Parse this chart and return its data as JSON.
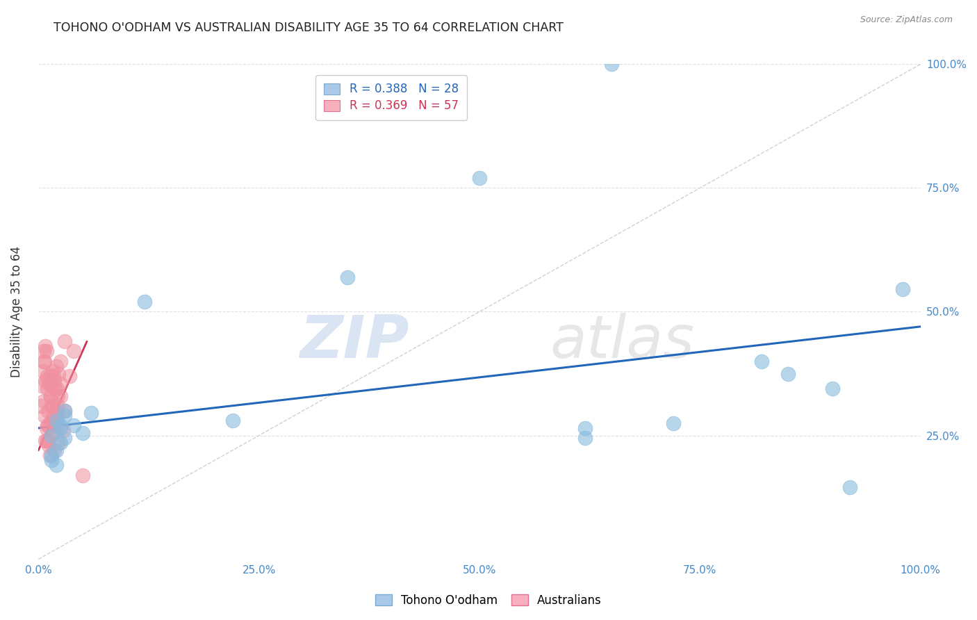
{
  "title": "TOHONO O'ODHAM VS AUSTRALIAN DISABILITY AGE 35 TO 64 CORRELATION CHART",
  "source": "Source: ZipAtlas.com",
  "ylabel": "Disability Age 35 to 64",
  "xlim": [
    0,
    1.0
  ],
  "ylim": [
    0,
    1.0
  ],
  "xtick_labels": [
    "0.0%",
    "",
    "25.0%",
    "",
    "50.0%",
    "",
    "75.0%",
    "",
    "100.0%"
  ],
  "xtick_values": [
    0.0,
    0.125,
    0.25,
    0.375,
    0.5,
    0.625,
    0.75,
    0.875,
    1.0
  ],
  "ytick_values": [
    0.0,
    0.25,
    0.5,
    0.75,
    1.0
  ],
  "ytick_labels_right": [
    "",
    "25.0%",
    "50.0%",
    "75.0%",
    "100.0%"
  ],
  "tohono_scatter": [
    [
      0.02,
      0.28
    ],
    [
      0.03,
      0.3
    ],
    [
      0.025,
      0.265
    ],
    [
      0.015,
      0.25
    ],
    [
      0.02,
      0.22
    ],
    [
      0.025,
      0.27
    ],
    [
      0.03,
      0.245
    ],
    [
      0.015,
      0.2
    ],
    [
      0.02,
      0.19
    ],
    [
      0.03,
      0.29
    ],
    [
      0.04,
      0.27
    ],
    [
      0.05,
      0.255
    ],
    [
      0.06,
      0.295
    ],
    [
      0.025,
      0.235
    ],
    [
      0.015,
      0.21
    ],
    [
      0.12,
      0.52
    ],
    [
      0.22,
      0.28
    ],
    [
      0.35,
      0.57
    ],
    [
      0.5,
      0.77
    ],
    [
      0.62,
      0.265
    ],
    [
      0.62,
      0.245
    ],
    [
      0.72,
      0.275
    ],
    [
      0.82,
      0.4
    ],
    [
      0.85,
      0.375
    ],
    [
      0.9,
      0.345
    ],
    [
      0.92,
      0.145
    ],
    [
      0.98,
      0.545
    ],
    [
      0.65,
      1.0
    ]
  ],
  "australian_scatter": [
    [
      0.005,
      0.38
    ],
    [
      0.008,
      0.36
    ],
    [
      0.007,
      0.4
    ],
    [
      0.01,
      0.37
    ],
    [
      0.012,
      0.355
    ],
    [
      0.006,
      0.32
    ],
    [
      0.009,
      0.42
    ],
    [
      0.011,
      0.3
    ],
    [
      0.013,
      0.37
    ],
    [
      0.015,
      0.35
    ],
    [
      0.014,
      0.33
    ],
    [
      0.016,
      0.38
    ],
    [
      0.017,
      0.31
    ],
    [
      0.018,
      0.36
    ],
    [
      0.02,
      0.39
    ],
    [
      0.021,
      0.345
    ],
    [
      0.022,
      0.33
    ],
    [
      0.023,
      0.375
    ],
    [
      0.025,
      0.4
    ],
    [
      0.01,
      0.27
    ],
    [
      0.008,
      0.24
    ],
    [
      0.006,
      0.42
    ],
    [
      0.015,
      0.28
    ],
    [
      0.012,
      0.23
    ],
    [
      0.03,
      0.3
    ],
    [
      0.04,
      0.42
    ],
    [
      0.02,
      0.26
    ],
    [
      0.018,
      0.22
    ],
    [
      0.025,
      0.355
    ],
    [
      0.03,
      0.44
    ],
    [
      0.025,
      0.33
    ],
    [
      0.02,
      0.29
    ],
    [
      0.015,
      0.31
    ],
    [
      0.01,
      0.345
    ],
    [
      0.05,
      0.17
    ],
    [
      0.007,
      0.29
    ],
    [
      0.009,
      0.265
    ],
    [
      0.011,
      0.24
    ],
    [
      0.013,
      0.21
    ],
    [
      0.016,
      0.28
    ],
    [
      0.018,
      0.255
    ],
    [
      0.02,
      0.3
    ],
    [
      0.023,
      0.235
    ],
    [
      0.028,
      0.26
    ],
    [
      0.035,
      0.37
    ],
    [
      0.014,
      0.33
    ],
    [
      0.016,
      0.29
    ],
    [
      0.022,
      0.31
    ],
    [
      0.019,
      0.345
    ],
    [
      0.021,
      0.285
    ],
    [
      0.006,
      0.4
    ],
    [
      0.004,
      0.35
    ],
    [
      0.003,
      0.31
    ],
    [
      0.008,
      0.43
    ],
    [
      0.017,
      0.37
    ],
    [
      0.012,
      0.27
    ],
    [
      0.009,
      0.24
    ]
  ],
  "tohono_line_x": [
    0.0,
    1.0
  ],
  "tohono_line_y": [
    0.265,
    0.47
  ],
  "australian_line_x": [
    0.0,
    0.055
  ],
  "australian_line_y": [
    0.22,
    0.44
  ],
  "diagonal_line_x": [
    0.0,
    1.0
  ],
  "diagonal_line_y": [
    0.0,
    1.0
  ],
  "tohono_color": "#88bbdd",
  "australian_color": "#f090a0",
  "tohono_line_color": "#2266bb",
  "australian_line_color": "#cc3355",
  "diagonal_color": "#cccccc",
  "right_tick_color": "#4488cc",
  "bottom_tick_color": "#4488cc",
  "background_color": "#ffffff",
  "watermark_zip": "ZIP",
  "watermark_atlas": "atlas",
  "grid_color": "#dddddd"
}
